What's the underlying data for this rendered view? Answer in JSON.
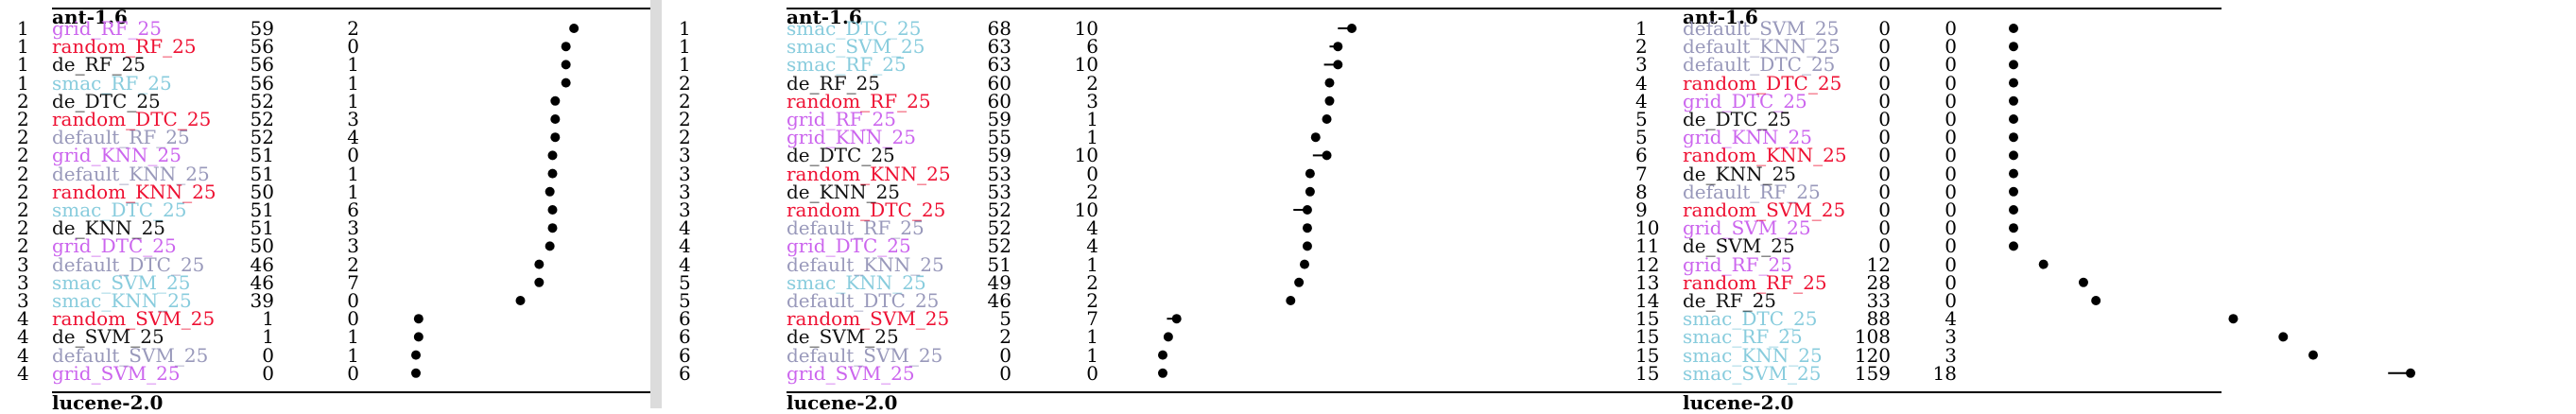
{
  "colors": {
    "grid": "#cc66ee",
    "random": "#ee1133",
    "de": "#111111",
    "smac": "#88ccdd",
    "default": "#9999bb"
  },
  "panels": [
    {
      "id": "p1",
      "top_title": "ant-1.6",
      "bottom_title": "lucene-2.0",
      "scale_max": 60,
      "rows": [
        {
          "rank": "1",
          "name": "grid_RF_25",
          "family": "grid",
          "a": "59",
          "b": "2",
          "err": 0
        },
        {
          "rank": "1",
          "name": "random_RF_25",
          "family": "random",
          "a": "56",
          "b": "0",
          "err": 0
        },
        {
          "rank": "1",
          "name": "de_RF_25",
          "family": "de",
          "a": "56",
          "b": "1",
          "err": 0
        },
        {
          "rank": "1",
          "name": "smac_RF_25",
          "family": "smac",
          "a": "56",
          "b": "1",
          "err": 0
        },
        {
          "rank": "2",
          "name": "de_DTC_25",
          "family": "de",
          "a": "52",
          "b": "1",
          "err": 0
        },
        {
          "rank": "2",
          "name": "random_DTC_25",
          "family": "random",
          "a": "52",
          "b": "3",
          "err": 0
        },
        {
          "rank": "2",
          "name": "default_RF_25",
          "family": "default",
          "a": "52",
          "b": "4",
          "err": 0
        },
        {
          "rank": "2",
          "name": "grid_KNN_25",
          "family": "grid",
          "a": "51",
          "b": "0",
          "err": 0
        },
        {
          "rank": "2",
          "name": "default_KNN_25",
          "family": "default",
          "a": "51",
          "b": "1",
          "err": 0
        },
        {
          "rank": "2",
          "name": "random_KNN_25",
          "family": "random",
          "a": "50",
          "b": "1",
          "err": 0
        },
        {
          "rank": "2",
          "name": "smac_DTC_25",
          "family": "smac",
          "a": "51",
          "b": "6",
          "err": 0
        },
        {
          "rank": "2",
          "name": "de_KNN_25",
          "family": "de",
          "a": "51",
          "b": "3",
          "err": 0
        },
        {
          "rank": "2",
          "name": "grid_DTC_25",
          "family": "grid",
          "a": "50",
          "b": "3",
          "err": 0
        },
        {
          "rank": "3",
          "name": "default_DTC_25",
          "family": "default",
          "a": "46",
          "b": "2",
          "err": 0
        },
        {
          "rank": "3",
          "name": "smac_SVM_25",
          "family": "smac",
          "a": "46",
          "b": "7",
          "err": 0
        },
        {
          "rank": "3",
          "name": "smac_KNN_25",
          "family": "smac",
          "a": "39",
          "b": "0",
          "err": 0
        },
        {
          "rank": "4",
          "name": "random_SVM_25",
          "family": "random",
          "a": "1",
          "b": "0",
          "err": 0
        },
        {
          "rank": "4",
          "name": "de_SVM_25",
          "family": "de",
          "a": "1",
          "b": "1",
          "err": 0
        },
        {
          "rank": "4",
          "name": "default_SVM_25",
          "family": "default",
          "a": "0",
          "b": "1",
          "err": 0
        },
        {
          "rank": "4",
          "name": "grid_SVM_25",
          "family": "grid",
          "a": "0",
          "b": "0",
          "err": 0
        }
      ]
    },
    {
      "id": "p2",
      "top_title": "ant-1.6",
      "bottom_title": "lucene-2.0",
      "scale_max": 68,
      "rows": [
        {
          "rank": "1",
          "name": "smac_DTC_25",
          "family": "smac",
          "a": "68",
          "b": "10",
          "err": 1
        },
        {
          "rank": "1",
          "name": "smac_SVM_25",
          "family": "smac",
          "a": "63",
          "b": "6",
          "err": 1
        },
        {
          "rank": "1",
          "name": "smac_RF_25",
          "family": "smac",
          "a": "63",
          "b": "10",
          "err": 1
        },
        {
          "rank": "2",
          "name": "de_RF_25",
          "family": "de",
          "a": "60",
          "b": "2",
          "err": 0
        },
        {
          "rank": "2",
          "name": "random_RF_25",
          "family": "random",
          "a": "60",
          "b": "3",
          "err": 0
        },
        {
          "rank": "2",
          "name": "grid_RF_25",
          "family": "grid",
          "a": "59",
          "b": "1",
          "err": 0
        },
        {
          "rank": "2",
          "name": "grid_KNN_25",
          "family": "grid",
          "a": "55",
          "b": "1",
          "err": 0
        },
        {
          "rank": "3",
          "name": "de_DTC_25",
          "family": "de",
          "a": "59",
          "b": "10",
          "err": 1
        },
        {
          "rank": "3",
          "name": "random_KNN_25",
          "family": "random",
          "a": "53",
          "b": "0",
          "err": 0
        },
        {
          "rank": "3",
          "name": "de_KNN_25",
          "family": "de",
          "a": "53",
          "b": "2",
          "err": 0
        },
        {
          "rank": "3",
          "name": "random_DTC_25",
          "family": "random",
          "a": "52",
          "b": "10",
          "err": 1
        },
        {
          "rank": "4",
          "name": "default_RF_25",
          "family": "default",
          "a": "52",
          "b": "4",
          "err": 0
        },
        {
          "rank": "4",
          "name": "grid_DTC_25",
          "family": "grid",
          "a": "52",
          "b": "4",
          "err": 0
        },
        {
          "rank": "4",
          "name": "default_KNN_25",
          "family": "default",
          "a": "51",
          "b": "1",
          "err": 0
        },
        {
          "rank": "5",
          "name": "smac_KNN_25",
          "family": "smac",
          "a": "49",
          "b": "2",
          "err": 0
        },
        {
          "rank": "5",
          "name": "default_DTC_25",
          "family": "default",
          "a": "46",
          "b": "2",
          "err": 0
        },
        {
          "rank": "6",
          "name": "random_SVM_25",
          "family": "random",
          "a": "5",
          "b": "7",
          "err": 1
        },
        {
          "rank": "6",
          "name": "de_SVM_25",
          "family": "de",
          "a": "2",
          "b": "1",
          "err": 0
        },
        {
          "rank": "6",
          "name": "default_SVM_25",
          "family": "default",
          "a": "0",
          "b": "1",
          "err": 0
        },
        {
          "rank": "6",
          "name": "grid_SVM_25",
          "family": "grid",
          "a": "0",
          "b": "0",
          "err": 0
        }
      ]
    },
    {
      "id": "p3",
      "top_title": "ant-1.6",
      "bottom_title": "lucene-2.0",
      "scale_max": 159,
      "rows": [
        {
          "rank": "1",
          "name": "default_SVM_25",
          "family": "default",
          "a": "0",
          "b": "0",
          "err": 0
        },
        {
          "rank": "2",
          "name": "default_KNN_25",
          "family": "default",
          "a": "0",
          "b": "0",
          "err": 0
        },
        {
          "rank": "3",
          "name": "default_DTC_25",
          "family": "default",
          "a": "0",
          "b": "0",
          "err": 0
        },
        {
          "rank": "4",
          "name": "random_DTC_25",
          "family": "random",
          "a": "0",
          "b": "0",
          "err": 0
        },
        {
          "rank": "4",
          "name": "grid_DTC_25",
          "family": "grid",
          "a": "0",
          "b": "0",
          "err": 0
        },
        {
          "rank": "5",
          "name": "de_DTC_25",
          "family": "de",
          "a": "0",
          "b": "0",
          "err": 0
        },
        {
          "rank": "5",
          "name": "grid_KNN_25",
          "family": "grid",
          "a": "0",
          "b": "0",
          "err": 0
        },
        {
          "rank": "6",
          "name": "random_KNN_25",
          "family": "random",
          "a": "0",
          "b": "0",
          "err": 0
        },
        {
          "rank": "7",
          "name": "de_KNN_25",
          "family": "de",
          "a": "0",
          "b": "0",
          "err": 0
        },
        {
          "rank": "8",
          "name": "default_RF_25",
          "family": "default",
          "a": "0",
          "b": "0",
          "err": 0
        },
        {
          "rank": "9",
          "name": "random_SVM_25",
          "family": "random",
          "a": "0",
          "b": "0",
          "err": 0
        },
        {
          "rank": "10",
          "name": "grid_SVM_25",
          "family": "grid",
          "a": "0",
          "b": "0",
          "err": 0
        },
        {
          "rank": "11",
          "name": "de_SVM_25",
          "family": "de",
          "a": "0",
          "b": "0",
          "err": 0
        },
        {
          "rank": "12",
          "name": "grid_RF_25",
          "family": "grid",
          "a": "12",
          "b": "0",
          "err": 0
        },
        {
          "rank": "13",
          "name": "random_RF_25",
          "family": "random",
          "a": "28",
          "b": "0",
          "err": 0
        },
        {
          "rank": "14",
          "name": "de_RF_25",
          "family": "de",
          "a": "33",
          "b": "0",
          "err": 0
        },
        {
          "rank": "15",
          "name": "smac_DTC_25",
          "family": "smac",
          "a": "88",
          "b": "4",
          "err": 0
        },
        {
          "rank": "15",
          "name": "smac_RF_25",
          "family": "smac",
          "a": "108",
          "b": "3",
          "err": 0
        },
        {
          "rank": "15",
          "name": "smac_KNN_25",
          "family": "smac",
          "a": "120",
          "b": "3",
          "err": 0
        },
        {
          "rank": "15",
          "name": "smac_SVM_25",
          "family": "smac",
          "a": "159",
          "b": "18",
          "err": 1
        }
      ]
    }
  ]
}
